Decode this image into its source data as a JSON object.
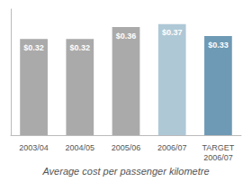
{
  "chart_data": {
    "type": "bar",
    "title": "Average cost per passenger kilometre",
    "categories": [
      "2003/04",
      "2004/05",
      "2005/06",
      "2006/07",
      "TARGET\n2006/07"
    ],
    "values": [
      0.32,
      0.32,
      0.36,
      0.37,
      0.33
    ],
    "value_labels": [
      "$0.32",
      "$0.32",
      "$0.36",
      "$0.37",
      "$0.33"
    ],
    "colors": [
      "#aaaaaa",
      "#aaaaaa",
      "#aaaaaa",
      "#aec8d6",
      "#6e9ab5"
    ],
    "ylim": [
      0,
      0.42
    ],
    "grid": false,
    "data_labels": true,
    "tick_labels": "x"
  }
}
